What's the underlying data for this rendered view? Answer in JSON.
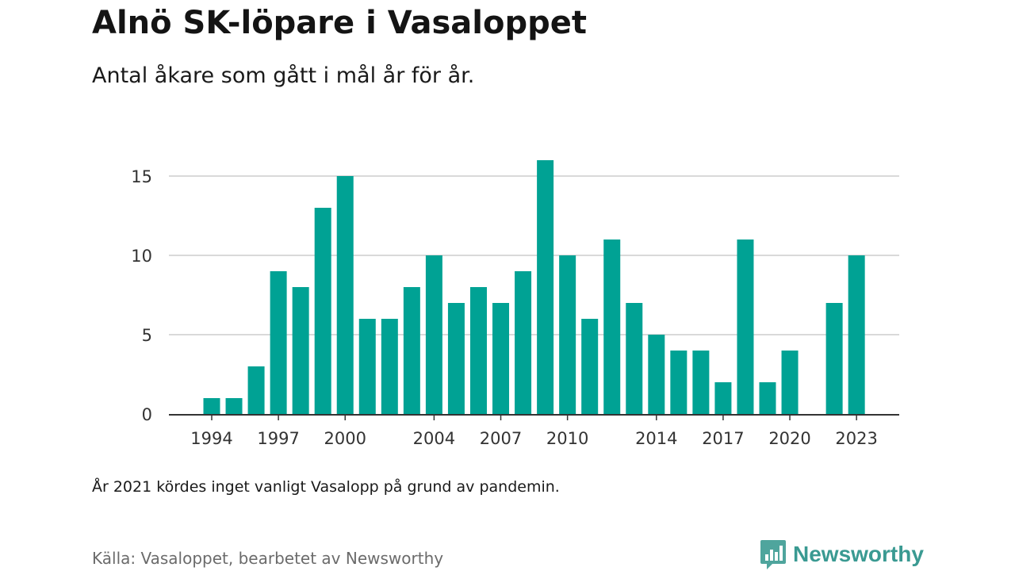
{
  "title": "Alnö SK-löpare i Vasaloppet",
  "subtitle": "Antal åkare som gått i mål år för år.",
  "note": "År 2021 kördes inget vanligt Vasalopp på grund av pandemin.",
  "source": "Källa: Vasaloppet, bearbetet av Newsworthy",
  "brand": {
    "name": "Newsworthy",
    "icon": "newsworthy-logo-icon",
    "color": "#3a9a92"
  },
  "colors": {
    "bar": "#00a294",
    "grid": "#d9d9d9",
    "axis": "#333333"
  },
  "chart_data": {
    "type": "bar",
    "title": "",
    "xlabel": "",
    "ylabel": "",
    "x": [
      1994,
      1995,
      1996,
      1997,
      1998,
      1999,
      2000,
      2001,
      2002,
      2003,
      2004,
      2005,
      2006,
      2007,
      2008,
      2009,
      2010,
      2011,
      2012,
      2013,
      2014,
      2015,
      2016,
      2017,
      2018,
      2019,
      2020,
      2021,
      2022,
      2023
    ],
    "values": [
      1,
      1,
      3,
      9,
      8,
      13,
      15,
      6,
      6,
      8,
      10,
      7,
      8,
      7,
      9,
      16,
      10,
      6,
      11,
      7,
      5,
      4,
      4,
      2,
      11,
      2,
      4,
      0,
      7,
      10
    ],
    "x_ticks": [
      "1994",
      "1997",
      "2000",
      "2004",
      "2007",
      "2010",
      "2014",
      "2017",
      "2020",
      "2023"
    ],
    "y_ticks": [
      "0",
      "5",
      "10",
      "15"
    ],
    "ylim": [
      0,
      16
    ],
    "grid": true,
    "legend": "none"
  }
}
